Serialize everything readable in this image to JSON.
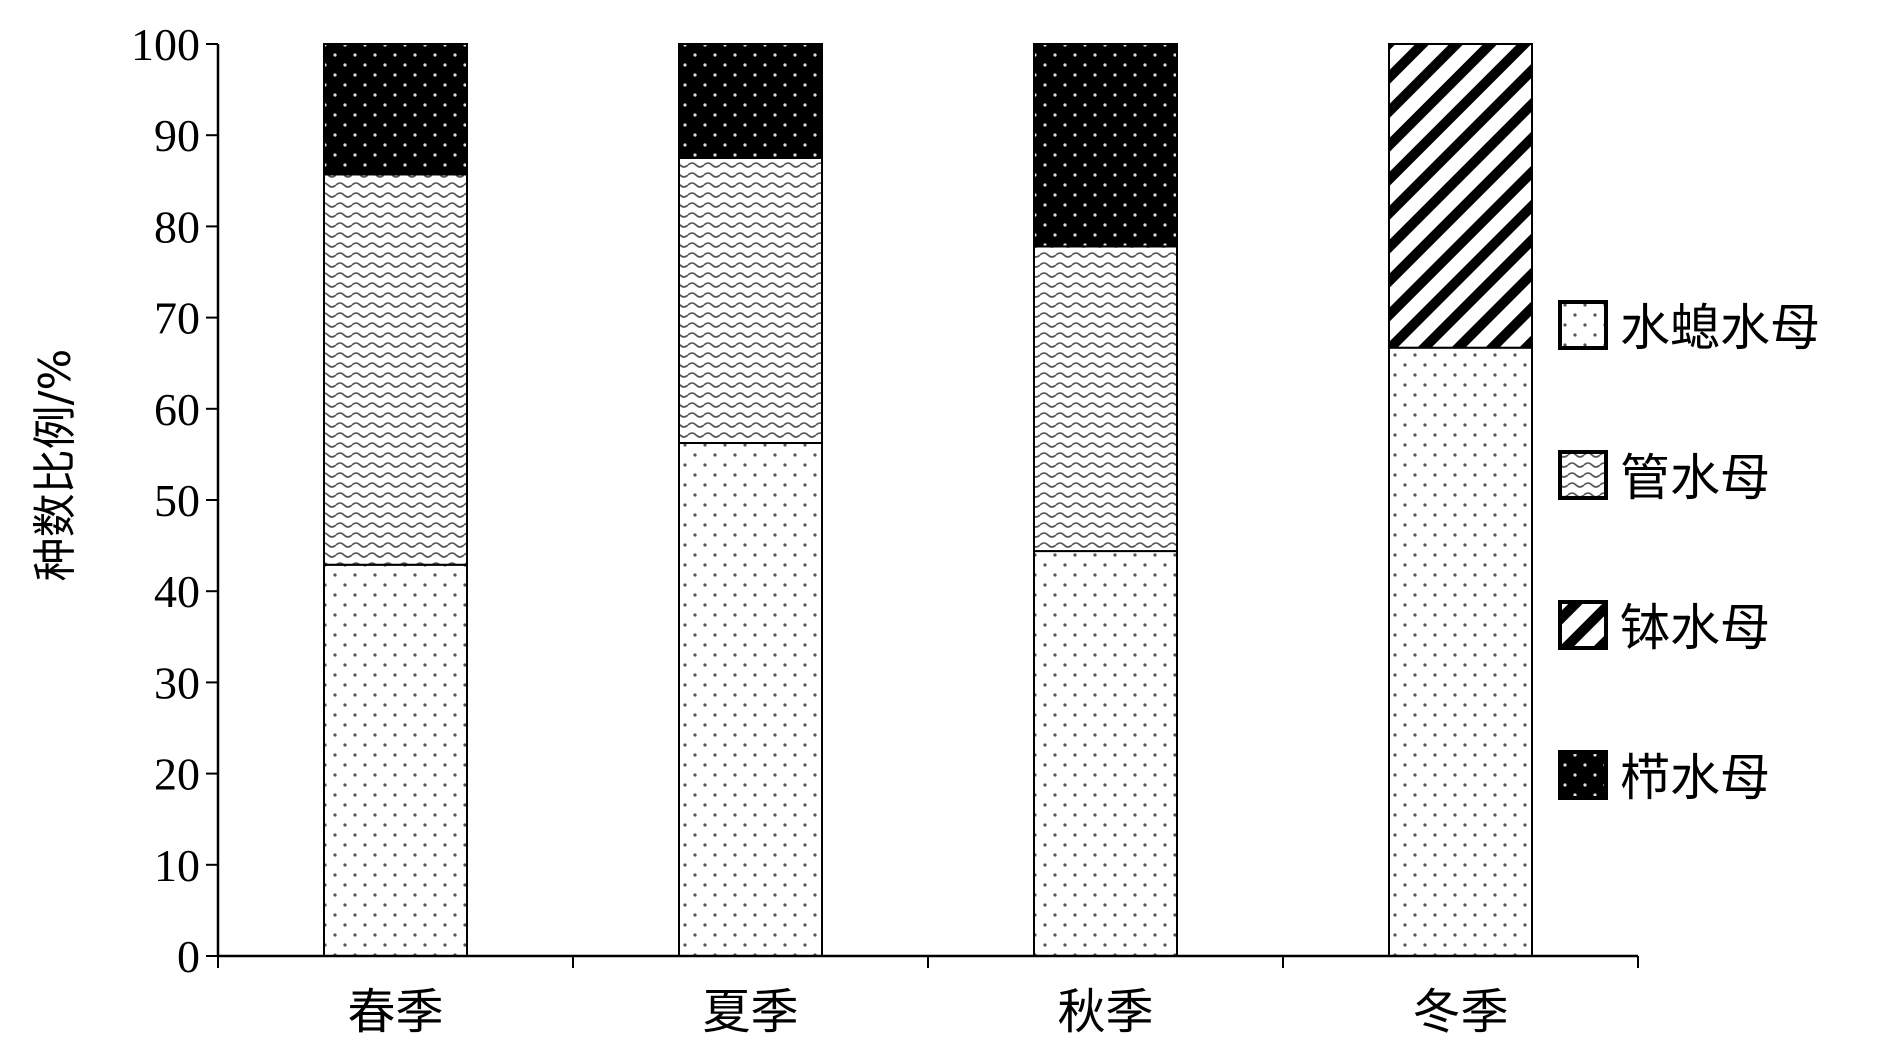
{
  "chart_data": {
    "type": "bar",
    "stacked": true,
    "ylabel": "种数比例/%",
    "xlabel": "",
    "ylim": [
      0,
      100
    ],
    "yticks": [
      0,
      10,
      20,
      30,
      40,
      50,
      60,
      70,
      80,
      90,
      100
    ],
    "categories": [
      "春季",
      "夏季",
      "秋季",
      "冬季"
    ],
    "series": [
      {
        "name": "水螅水母",
        "pattern": "dots-light",
        "values": [
          42.9,
          56.25,
          44.4,
          66.7
        ]
      },
      {
        "name": "管水母",
        "pattern": "waves",
        "values": [
          42.8,
          31.25,
          33.4,
          0
        ]
      },
      {
        "name": "钵水母",
        "pattern": "diagonal-stripes",
        "values": [
          0,
          0,
          0,
          33.3
        ]
      },
      {
        "name": "栉水母",
        "pattern": "dots-dark",
        "values": [
          14.3,
          12.5,
          22.2,
          0
        ]
      }
    ],
    "legend_position": "right",
    "legend_order": [
      "水螅水母",
      "管水母",
      "钵水母",
      "栉水母"
    ],
    "colors": {
      "axis": "#000000",
      "bar_border": "#000000",
      "dark_fill": "#000000"
    }
  }
}
